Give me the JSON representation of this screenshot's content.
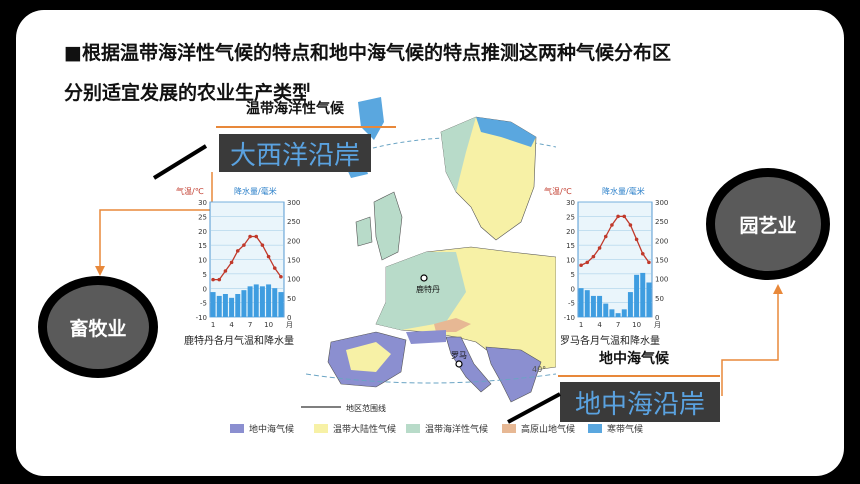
{
  "slide": {
    "title_line1": "■根据温带海洋性气候的特点和地中海气候的特点推测这两种气候分布区",
    "title_line2": "分别适宜发展的农业生产类型"
  },
  "left": {
    "climate_label": "温带海洋性气候",
    "region_box": "大西洋沿岸",
    "agriculture": "畜牧业",
    "chart_caption": "鹿特丹各月气温和降水量"
  },
  "right": {
    "climate_label": "地中海气候",
    "region_box": "地中海沿岸",
    "agriculture": "园艺业",
    "chart_caption": "罗马各月气温和降水量"
  },
  "map": {
    "city_rotterdam": "鹿特丹",
    "city_rome": "罗马",
    "lat_label": "40°",
    "boundary_label": "地区范围线"
  },
  "legend": [
    {
      "label": "地中海气候",
      "color": "#8b8fd0"
    },
    {
      "label": "温带大陆性气候",
      "color": "#f7f1a6"
    },
    {
      "label": "温带海洋性气候",
      "color": "#b8dbc9"
    },
    {
      "label": "高原山地气候",
      "color": "#e7b894"
    },
    {
      "label": "寒带气候",
      "color": "#5aa7df"
    }
  ],
  "chart_data": [
    {
      "type": "bar",
      "caption": "鹿特丹各月气温和降水量",
      "categories": [
        1,
        2,
        3,
        4,
        5,
        6,
        7,
        8,
        9,
        10,
        11,
        12
      ],
      "x_tick_labels": [
        "1",
        "4",
        "7",
        "10"
      ],
      "x_unit": "月",
      "left_axis_label": "气温/℃",
      "right_axis_label": "降水量/毫米",
      "left_ticks": [
        -10,
        -5,
        0,
        5,
        10,
        15,
        20,
        25,
        30
      ],
      "right_ticks": [
        0,
        50,
        100,
        150,
        200,
        250,
        300
      ],
      "ylim_temp": [
        -10,
        30
      ],
      "ylim_precip": [
        0,
        300
      ],
      "series": [
        {
          "name": "降水量",
          "kind": "bar",
          "values": [
            65,
            55,
            60,
            50,
            60,
            70,
            80,
            85,
            80,
            85,
            75,
            65
          ]
        },
        {
          "name": "气温",
          "kind": "line",
          "values": [
            3,
            3,
            6,
            9,
            13,
            15,
            18,
            18,
            15,
            11,
            7,
            4
          ]
        }
      ]
    },
    {
      "type": "bar",
      "caption": "罗马各月气温和降水量",
      "categories": [
        1,
        2,
        3,
        4,
        5,
        6,
        7,
        8,
        9,
        10,
        11,
        12
      ],
      "x_tick_labels": [
        "1",
        "4",
        "7",
        "10"
      ],
      "x_unit": "月",
      "left_axis_label": "气温/℃",
      "right_axis_label": "降水量/毫米",
      "left_ticks": [
        -10,
        -5,
        0,
        5,
        10,
        15,
        20,
        25,
        30
      ],
      "right_ticks": [
        0,
        50,
        100,
        150,
        200,
        250,
        300
      ],
      "ylim_temp": [
        -10,
        30
      ],
      "ylim_precip": [
        0,
        300
      ],
      "series": [
        {
          "name": "降水量",
          "kind": "bar",
          "values": [
            75,
            70,
            55,
            55,
            35,
            20,
            10,
            20,
            65,
            110,
            115,
            90
          ]
        },
        {
          "name": "气温",
          "kind": "line",
          "values": [
            8,
            9,
            11,
            14,
            18,
            22,
            25,
            25,
            22,
            17,
            12,
            9
          ]
        }
      ]
    }
  ]
}
